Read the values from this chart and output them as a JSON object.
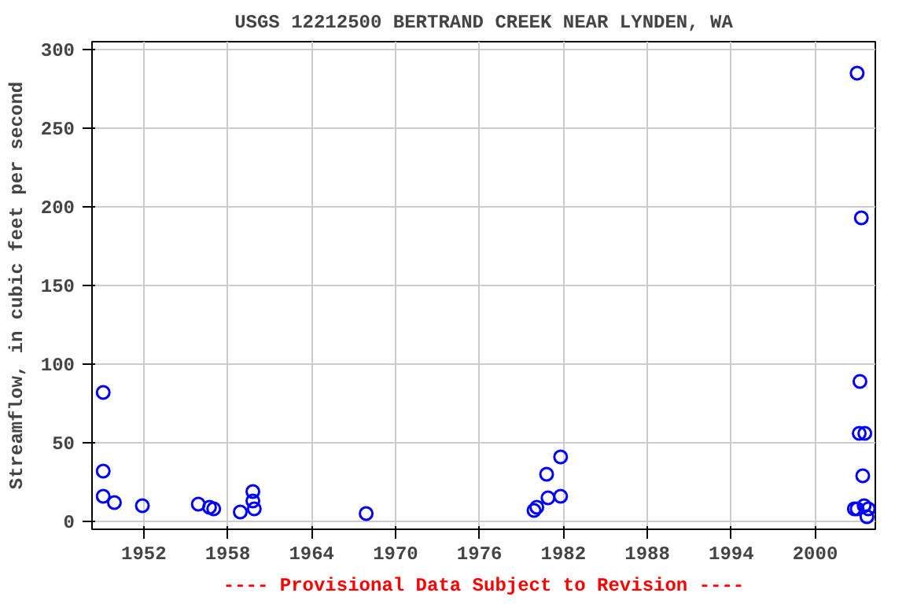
{
  "chart_data": {
    "type": "scatter",
    "title": "USGS 12212500 BERTRAND CREEK NEAR LYNDEN, WA",
    "ylabel": "Streamflow, in cubic feet per second",
    "annotations": [
      "---- Provisional Data Subject to Revision ----"
    ],
    "x": [
      1949.1,
      1949.1,
      1949.1,
      1949.9,
      1951.9,
      1955.9,
      1956.7,
      1957.0,
      1958.9,
      1959.8,
      1959.8,
      1959.9,
      1967.9,
      1979.9,
      1980.1,
      1980.8,
      1980.9,
      1981.8,
      1981.8,
      2003.0,
      2003.3,
      2003.2,
      2003.15,
      2003.55,
      2003.4,
      2003.5,
      2002.8,
      2003.0,
      2003.7,
      2003.8
    ],
    "series": [
      {
        "color": "#0000ff",
        "values": [
          82,
          32,
          16,
          12,
          10,
          11,
          9,
          8,
          6,
          19,
          13,
          8,
          5,
          7,
          9,
          30,
          15,
          41,
          16,
          285,
          193,
          89,
          56,
          56,
          29,
          10,
          8,
          8,
          3,
          8
        ]
      }
    ],
    "xlim": [
      1948.3,
      2004.3
    ],
    "ylim": [
      -5,
      305
    ],
    "xticks": [
      1952,
      1958,
      1964,
      1970,
      1976,
      1982,
      1988,
      1994,
      2000
    ],
    "yticks": [
      0,
      50,
      100,
      150,
      200,
      250,
      300
    ],
    "grid": true,
    "marker": "circle"
  }
}
